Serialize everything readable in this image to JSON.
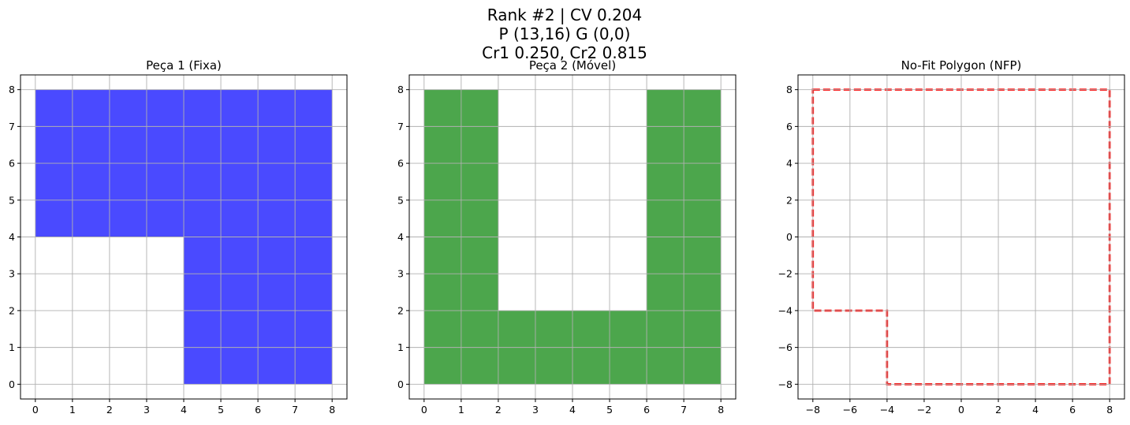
{
  "figure": {
    "suptitle_lines": [
      "Rank #2 | CV 0.204",
      "P (13,16) G (0,0)",
      "Cr1 0.250, Cr2 0.815"
    ]
  },
  "chart_data": [
    {
      "type": "area",
      "title": "Peça 1 (Fixa)",
      "xlim": [
        -0.4,
        8.4
      ],
      "ylim": [
        -0.4,
        8.4
      ],
      "xticks": [
        0,
        1,
        2,
        3,
        4,
        5,
        6,
        7,
        8
      ],
      "yticks": [
        0,
        1,
        2,
        3,
        4,
        5,
        6,
        7,
        8
      ],
      "grid": true,
      "series": [
        {
          "style": "filled-polygon",
          "fill": "#4a4aff",
          "vertices": [
            [
              0,
              8
            ],
            [
              8,
              8
            ],
            [
              8,
              0
            ],
            [
              4,
              0
            ],
            [
              4,
              4
            ],
            [
              0,
              4
            ]
          ]
        }
      ]
    },
    {
      "type": "area",
      "title": "Peça 2 (Móvel)",
      "xlim": [
        -0.4,
        8.4
      ],
      "ylim": [
        -0.4,
        8.4
      ],
      "xticks": [
        0,
        1,
        2,
        3,
        4,
        5,
        6,
        7,
        8
      ],
      "yticks": [
        0,
        1,
        2,
        3,
        4,
        5,
        6,
        7,
        8
      ],
      "grid": true,
      "series": [
        {
          "style": "filled-polygon",
          "fill": "#4ca64c",
          "vertices": [
            [
              0,
              0
            ],
            [
              8,
              0
            ],
            [
              8,
              8
            ],
            [
              6,
              8
            ],
            [
              6,
              2
            ],
            [
              2,
              2
            ],
            [
              2,
              8
            ],
            [
              0,
              8
            ]
          ]
        }
      ]
    },
    {
      "type": "line",
      "title": "No-Fit Polygon (NFP)",
      "xlim": [
        -8.8,
        8.8
      ],
      "ylim": [
        -8.8,
        8.8
      ],
      "xticks": [
        -8,
        -6,
        -4,
        -2,
        0,
        2,
        4,
        6,
        8
      ],
      "yticks": [
        -8,
        -6,
        -4,
        -2,
        0,
        2,
        4,
        6,
        8
      ],
      "grid": true,
      "series": [
        {
          "style": "dashed-outline",
          "color": "#ff0000",
          "vertices": [
            [
              -8,
              8
            ],
            [
              8,
              8
            ],
            [
              8,
              -8
            ],
            [
              -4,
              -8
            ],
            [
              -4,
              -4
            ],
            [
              -8,
              -4
            ]
          ]
        }
      ]
    }
  ]
}
